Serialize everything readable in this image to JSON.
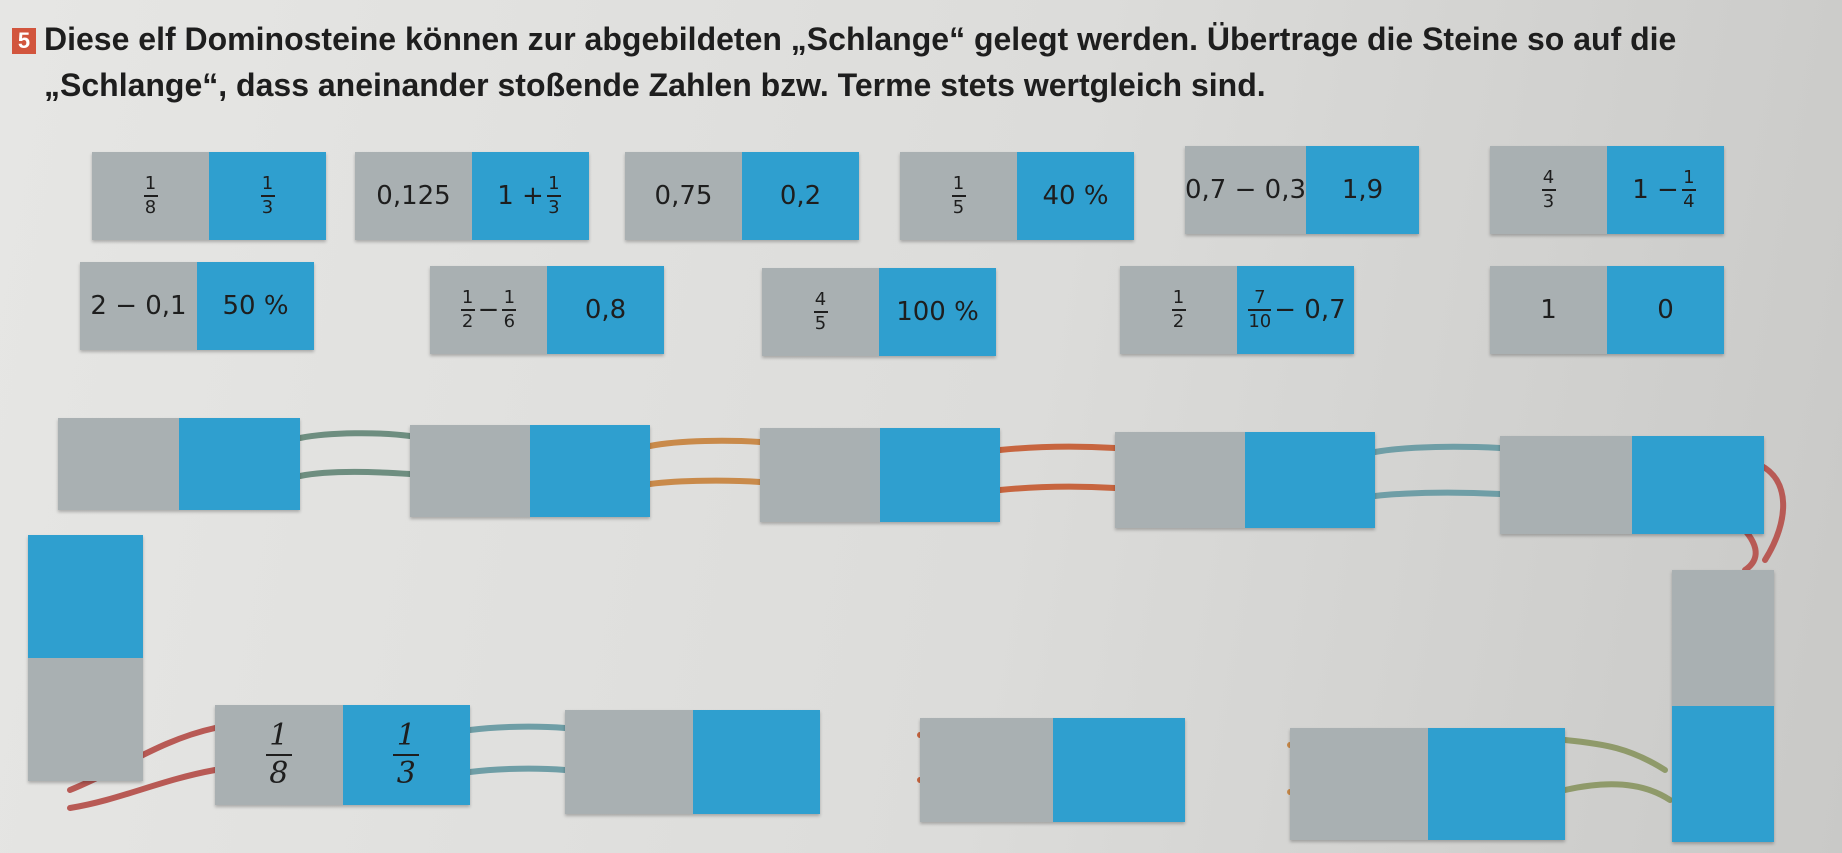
{
  "task": {
    "number": "5",
    "text_line1": "Diese elf Dominosteine können zur abgebildeten „Schlange“ gelegt werden. Übertrage die Steine so auf die",
    "text_line2": "„Schlange“, dass aneinander stoßende Zahlen bzw. Terme stets wertgleich sind."
  },
  "dominoes": [
    {
      "left": {
        "frac": [
          "1",
          "8"
        ]
      },
      "right": {
        "frac": [
          "1",
          "3"
        ]
      }
    },
    {
      "left": {
        "text": "0,125"
      },
      "right": {
        "pre": "1 +",
        "frac": [
          "1",
          "3"
        ]
      }
    },
    {
      "left": {
        "text": "0,75"
      },
      "right": {
        "text": "0,2"
      }
    },
    {
      "left": {
        "frac": [
          "1",
          "5"
        ]
      },
      "right": {
        "text": "40 %"
      }
    },
    {
      "left": {
        "text": "0,7 − 0,3"
      },
      "right": {
        "text": "1,9"
      }
    },
    {
      "left": {
        "frac": [
          "4",
          "3"
        ]
      },
      "right": {
        "pre": "1 −",
        "frac": [
          "1",
          "4"
        ]
      }
    },
    {
      "left": {
        "text": "2 − 0,1"
      },
      "right": {
        "text": "50 %"
      }
    },
    {
      "left": {
        "frac": [
          "1",
          "2"
        ],
        "post": "−",
        "frac2": [
          "1",
          "6"
        ]
      },
      "right": {
        "text": "0,8"
      }
    },
    {
      "left": {
        "frac": [
          "4",
          "5"
        ]
      },
      "right": {
        "text": "100 %"
      }
    },
    {
      "left": {
        "frac": [
          "1",
          "2"
        ]
      },
      "right": {
        "frac": [
          "7",
          "10"
        ],
        "post": "− 0,7"
      }
    },
    {
      "left": {
        "text": "1"
      },
      "right": {
        "text": "0"
      }
    }
  ],
  "snake_start": {
    "left": {
      "num": "1",
      "den": "8"
    },
    "right": {
      "num": "1",
      "den": "3"
    }
  },
  "colors": {
    "gray_half": "#a9b0b2",
    "blue_half": "#2f9fcf",
    "badge": "#d2553d"
  }
}
